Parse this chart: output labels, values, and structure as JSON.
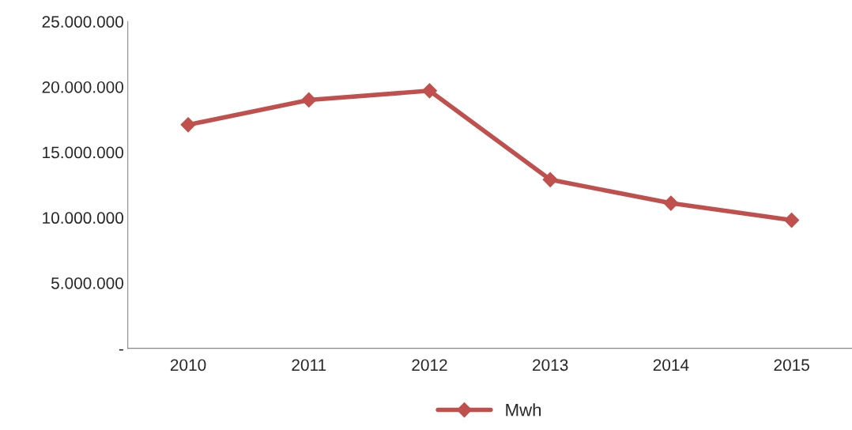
{
  "chart_data": {
    "type": "line",
    "categories": [
      "2010",
      "2011",
      "2012",
      "2013",
      "2014",
      "2015"
    ],
    "series": [
      {
        "name": "Mwh",
        "color": "#c0504d",
        "values": [
          17100000,
          19000000,
          19700000,
          12900000,
          11100000,
          9800000
        ]
      }
    ],
    "ylim": [
      0,
      25000000
    ],
    "yticks": [
      {
        "value": 0,
        "label": "-"
      },
      {
        "value": 5000000,
        "label": "5.000.000"
      },
      {
        "value": 10000000,
        "label": "10.000.000"
      },
      {
        "value": 15000000,
        "label": "15.000.000"
      },
      {
        "value": 20000000,
        "label": "20.000.000"
      },
      {
        "value": 25000000,
        "label": "25.000.000"
      }
    ],
    "grid": false,
    "legend": "bottom",
    "marker": "diamond",
    "line_style": "solid"
  }
}
